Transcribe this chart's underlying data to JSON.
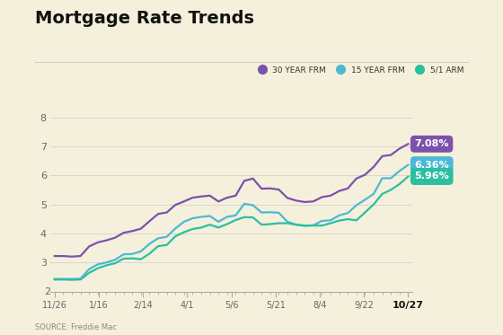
{
  "title": "Mortgage Rate Trends",
  "background_color": "#f5f0dc",
  "source_text": "SOURCE: Freddie Mac",
  "x_labels": [
    "11/26",
    "1/16",
    "2/14",
    "4/1",
    "5/6",
    "5/21",
    "8/4",
    "9/22",
    "10/27"
  ],
  "y_min": 2,
  "y_max": 8,
  "y_ticks": [
    3,
    4,
    5,
    6,
    7,
    8
  ],
  "series": [
    {
      "label": "30 YEAR FRM",
      "color": "#7b52ab",
      "end_value": "7.08%",
      "end_badge_color": "#7b52ab",
      "values": [
        3.22,
        3.22,
        3.2,
        3.22,
        3.55,
        3.69,
        3.76,
        3.85,
        4.02,
        4.08,
        4.16,
        4.42,
        4.67,
        4.72,
        4.98,
        5.1,
        5.23,
        5.27,
        5.3,
        5.1,
        5.23,
        5.3,
        5.81,
        5.89,
        5.54,
        5.55,
        5.51,
        5.22,
        5.13,
        5.08,
        5.1,
        5.25,
        5.3,
        5.46,
        5.55,
        5.89,
        6.02,
        6.29,
        6.66,
        6.7,
        6.92,
        7.08
      ]
    },
    {
      "label": "15 YEAR FRM",
      "color": "#4cb8d4",
      "end_value": "6.36%",
      "end_badge_color": "#4cb8d4",
      "values": [
        2.43,
        2.43,
        2.43,
        2.44,
        2.77,
        2.93,
        3.0,
        3.09,
        3.28,
        3.29,
        3.38,
        3.64,
        3.83,
        3.88,
        4.17,
        4.4,
        4.52,
        4.57,
        4.6,
        4.4,
        4.57,
        4.62,
        5.02,
        4.97,
        4.72,
        4.73,
        4.71,
        4.4,
        4.3,
        4.26,
        4.28,
        4.43,
        4.45,
        4.62,
        4.7,
        4.97,
        5.16,
        5.36,
        5.9,
        5.9,
        6.15,
        6.36
      ]
    },
    {
      "label": "5/1 ARM",
      "color": "#2bbfa0",
      "end_value": "5.96%",
      "end_badge_color": "#2bbfa0",
      "values": [
        2.41,
        2.41,
        2.4,
        2.41,
        2.64,
        2.8,
        2.9,
        2.97,
        3.13,
        3.14,
        3.11,
        3.3,
        3.56,
        3.6,
        3.9,
        4.04,
        4.15,
        4.2,
        4.3,
        4.2,
        4.32,
        4.46,
        4.56,
        4.55,
        4.3,
        4.32,
        4.35,
        4.35,
        4.3,
        4.27,
        4.27,
        4.27,
        4.35,
        4.44,
        4.49,
        4.45,
        4.72,
        5.0,
        5.36,
        5.5,
        5.7,
        5.96
      ]
    }
  ]
}
